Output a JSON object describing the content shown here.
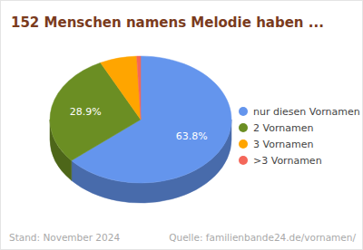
{
  "chart_data": {
    "type": "pie",
    "title": "152 Menschen namens Melodie haben ...",
    "categories": [
      "nur diesen Vornamen",
      "2 Vornamen",
      "3 Vornamen",
      ">3 Vornamen"
    ],
    "values": [
      63.8,
      28.9,
      6.6,
      0.7
    ],
    "value_labels": [
      "63.8%",
      "28.9%",
      null,
      null
    ],
    "colors": [
      "#6495ed",
      "#6b8e23",
      "#ffa500",
      "#f4675a"
    ],
    "data_labels": true,
    "legend": "right",
    "annotations": [
      "Stand: November 2024",
      "Quelle: familienbande24.de/vornamen/"
    ]
  }
}
